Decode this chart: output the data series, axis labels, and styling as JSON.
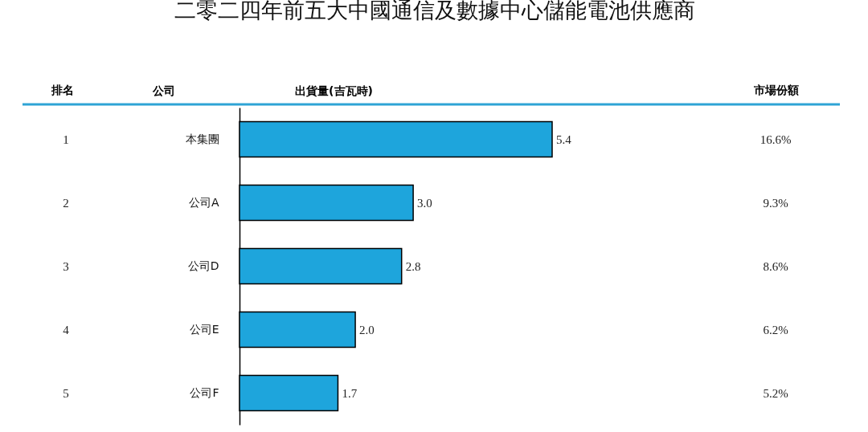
{
  "chart_data": {
    "type": "bar",
    "orientation": "horizontal",
    "title": "二零二四年前五大中國通信及數據中心儲能電池供應商",
    "ylabel": "公司",
    "xlabel": "出貨量(吉瓦時)",
    "categories": [
      "本集團",
      "公司A",
      "公司D",
      "公司E",
      "公司F"
    ],
    "values": [
      5.4,
      3.0,
      2.8,
      2.0,
      1.7
    ],
    "color": "#1ea5dc",
    "value_labels": [
      "5.4",
      "3.0",
      "2.8",
      "2.0",
      "1.7"
    ],
    "annotations": [
      "排名",
      "市場份額",
      "1",
      "2",
      "3",
      "4",
      "5",
      "16.6%",
      "9.3%",
      "8.6%",
      "6.2%",
      "5.2%"
    ]
  }
}
